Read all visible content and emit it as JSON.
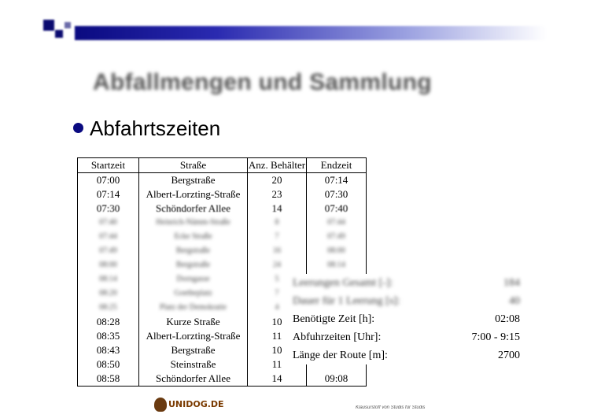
{
  "slide": {
    "title": "Abfallmengen und Sammlung",
    "bullet": "Abfahrtszeiten"
  },
  "table": {
    "headers": [
      "Startzeit",
      "Straße",
      "Anz. Behälter",
      "Endzeit"
    ],
    "rows": [
      [
        "07:00",
        "Bergstraße",
        "20",
        "07:14"
      ],
      [
        "07:14",
        "Albert-Lorzting-Straße",
        "23",
        "07:30"
      ],
      [
        "07:30",
        "Schöndorfer Allee",
        "14",
        "07:40"
      ],
      [
        "07:40",
        "Heinrich-Nämm-Straße",
        "8",
        "07:44"
      ],
      [
        "07:44",
        "Ecke Straße",
        "7",
        "07:49"
      ],
      [
        "07:49",
        "Bergstraße",
        "16",
        "08:00"
      ],
      [
        "08:00",
        "Bergstraße",
        "24",
        "08:14"
      ],
      [
        "08:14",
        "Dorngasse",
        "5",
        ""
      ],
      [
        "08:20",
        "Goetheplatz",
        "7",
        ""
      ],
      [
        "08:25",
        "Platz der Demokratie",
        "4",
        ""
      ],
      [
        "08:28",
        "Kurze Straße",
        "10",
        ""
      ],
      [
        "08:35",
        "Albert-Lorzting-Straße",
        "11",
        ""
      ],
      [
        "08:43",
        "Bergstraße",
        "10",
        ""
      ],
      [
        "08:50",
        "Steinstraße",
        "11",
        ""
      ],
      [
        "08:58",
        "Schöndorfer Allee",
        "14",
        "09:08"
      ]
    ]
  },
  "summary": [
    {
      "label": "Leerungen Gesamt [-]:",
      "value": "184"
    },
    {
      "label": "Dauer für 1 Leerung [s]:",
      "value": "40"
    },
    {
      "label": "Benötigte Zeit [h]:",
      "value": "02:08"
    },
    {
      "label": "Abfuhrzeiten [Uhr]:",
      "value": "7:00 - 9:15"
    },
    {
      "label": "Länge der Route [m]:",
      "value": "2700"
    }
  ],
  "footer": {
    "logo_text": "UNIDOG.DE",
    "caption": "Klausurstoff von Studis für Studis"
  }
}
